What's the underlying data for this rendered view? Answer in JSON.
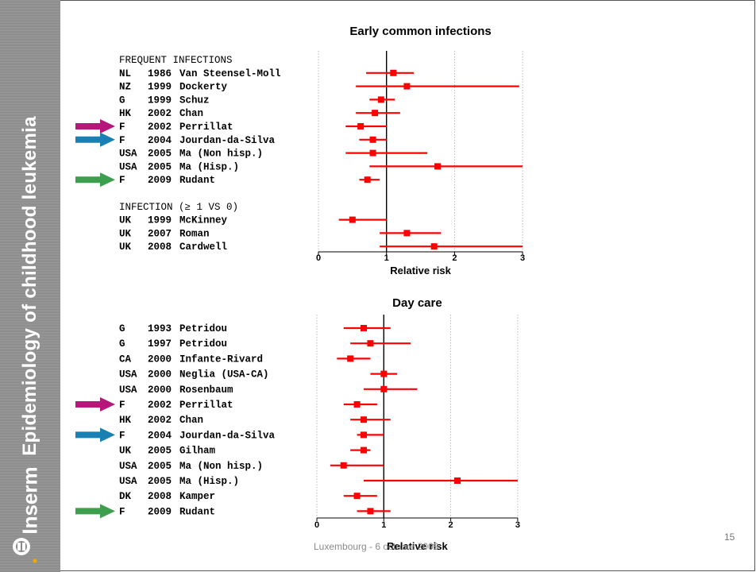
{
  "sidebar": {
    "title": "Epidemiology of childhood leukemia",
    "logo_text": "Inserm"
  },
  "footer": {
    "text": "Luxembourg - 6 octobre 2009",
    "page_number": "15"
  },
  "colors": {
    "series": "#ff0000",
    "arrow_magenta": "#b5177b",
    "arrow_blue": "#1a7fb3",
    "arrow_green": "#3d9e4e"
  },
  "chart_data": [
    {
      "type": "forest",
      "title": "Early common infections",
      "xlabel": "Relative risk",
      "xlim": [
        0,
        3
      ],
      "xticks": [
        "0",
        "1",
        "2",
        "3"
      ],
      "grid": "dotted vertical at 2 and 3",
      "reference_line": 1,
      "rows": [
        {
          "type": "header",
          "label": "FREQUENT INFECTIONS"
        },
        {
          "code": "NL",
          "year": "1986",
          "study": "Van Steensel-Moll",
          "rr": 1.1,
          "lo": 0.7,
          "hi": 1.4
        },
        {
          "code": "NZ",
          "year": "1999",
          "study": "Dockerty",
          "rr": 1.3,
          "lo": 0.55,
          "hi": 2.95
        },
        {
          "code": "G",
          "year": "1999",
          "study": "Schuz",
          "rr": 0.92,
          "lo": 0.75,
          "hi": 1.12
        },
        {
          "code": "HK",
          "year": "2002",
          "study": "Chan",
          "rr": 0.83,
          "lo": 0.55,
          "hi": 1.2
        },
        {
          "code": "F",
          "year": "2002",
          "study": "Perrillat",
          "rr": 0.62,
          "lo": 0.4,
          "hi": 1.0,
          "arrow": "magenta"
        },
        {
          "code": "F",
          "year": "2004",
          "study": "Jourdan-da-Silva",
          "rr": 0.8,
          "lo": 0.6,
          "hi": 1.0,
          "arrow": "blue"
        },
        {
          "code": "USA",
          "year": "2005",
          "study": "Ma (Non hisp.)",
          "rr": 0.8,
          "lo": 0.4,
          "hi": 1.6
        },
        {
          "code": "USA",
          "year": "2005",
          "study": "Ma (Hisp.)",
          "rr": 1.75,
          "lo": 0.75,
          "hi": 3.0
        },
        {
          "code": "F",
          "year": "2009",
          "study": "Rudant",
          "rr": 0.72,
          "lo": 0.6,
          "hi": 0.9,
          "arrow": "green"
        },
        {
          "type": "spacer"
        },
        {
          "type": "header",
          "label": "INFECTION (≥ 1 VS 0)"
        },
        {
          "code": "UK",
          "year": "1999",
          "study": "McKinney",
          "rr": 0.5,
          "lo": 0.3,
          "hi": 1.0
        },
        {
          "code": "UK",
          "year": "2007",
          "study": "Roman",
          "rr": 1.3,
          "lo": 0.9,
          "hi": 1.8
        },
        {
          "code": "UK",
          "year": "2008",
          "study": "Cardwell",
          "rr": 1.7,
          "lo": 0.9,
          "hi": 3.0
        }
      ]
    },
    {
      "type": "forest",
      "title": "Day care",
      "xlabel": "Relative risk",
      "xlim": [
        0,
        3
      ],
      "xticks": [
        "0",
        "1",
        "2",
        "3"
      ],
      "grid": "dotted vertical at 2 and 3",
      "reference_line": 1,
      "rows": [
        {
          "code": "G",
          "year": "1993",
          "study": "Petridou",
          "rr": 0.7,
          "lo": 0.4,
          "hi": 1.1
        },
        {
          "code": "G",
          "year": "1997",
          "study": "Petridou",
          "rr": 0.8,
          "lo": 0.5,
          "hi": 1.4
        },
        {
          "code": "CA",
          "year": "2000",
          "study": "Infante-Rivard",
          "rr": 0.5,
          "lo": 0.3,
          "hi": 0.8
        },
        {
          "code": "USA",
          "year": "2000",
          "study": "Neglia (USA-CA)",
          "rr": 1.0,
          "lo": 0.8,
          "hi": 1.2
        },
        {
          "code": "USA",
          "year": "2000",
          "study": "Rosenbaum",
          "rr": 1.0,
          "lo": 0.7,
          "hi": 1.5
        },
        {
          "code": "F",
          "year": "2002",
          "study": "Perrillat",
          "rr": 0.6,
          "lo": 0.4,
          "hi": 0.9,
          "arrow": "magenta"
        },
        {
          "code": "HK",
          "year": "2002",
          "study": "Chan",
          "rr": 0.7,
          "lo": 0.5,
          "hi": 1.1
        },
        {
          "code": "F",
          "year": "2004",
          "study": "Jourdan-da-Silva",
          "rr": 0.7,
          "lo": 0.6,
          "hi": 1.0,
          "arrow": "blue"
        },
        {
          "code": "UK",
          "year": "2005",
          "study": "Gilham",
          "rr": 0.7,
          "lo": 0.5,
          "hi": 0.8
        },
        {
          "code": "USA",
          "year": "2005",
          "study": "Ma (Non hisp.)",
          "rr": 0.4,
          "lo": 0.2,
          "hi": 1.0
        },
        {
          "code": "USA",
          "year": "2005",
          "study": "Ma (Hisp.)",
          "rr": 2.1,
          "lo": 0.7,
          "hi": 3.0
        },
        {
          "code": "DK",
          "year": "2008",
          "study": "Kamper",
          "rr": 0.6,
          "lo": 0.4,
          "hi": 0.9
        },
        {
          "code": "F",
          "year": "2009",
          "study": "Rudant",
          "rr": 0.8,
          "lo": 0.6,
          "hi": 1.1,
          "arrow": "green"
        }
      ]
    }
  ]
}
